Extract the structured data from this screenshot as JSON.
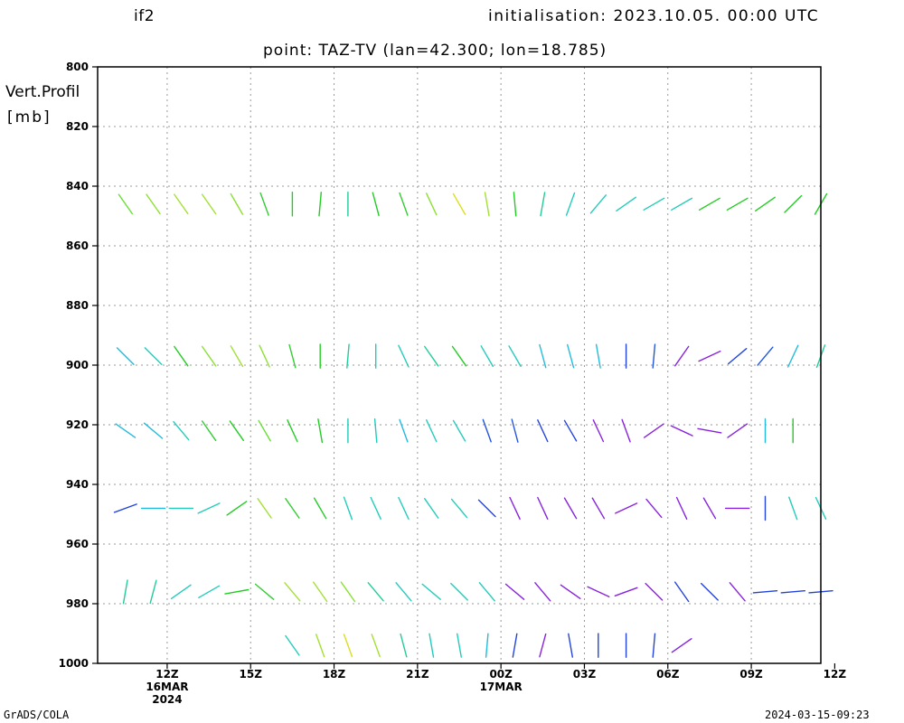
{
  "header": {
    "model": "if2",
    "initialisation": "initialisation: 2023.10.05. 00:00 UTC",
    "point": "point: TAZ-TV (lan=42.300; lon=18.785)"
  },
  "axis_title_lines": [
    "Vert.Profil",
    "[mb]"
  ],
  "footer": {
    "credit": "GrADS/COLA",
    "timestamp": "2024-03-15-09:23"
  },
  "chart_data": {
    "type": "vector-field",
    "title": "point: TAZ-TV (lan=42.300; lon=18.785)",
    "ylabel": "Vert.Profil [mb]",
    "y_inverted": true,
    "ylim": [
      800,
      1000
    ],
    "y_ticks": [
      800,
      820,
      840,
      860,
      880,
      900,
      920,
      940,
      960,
      980,
      1000
    ],
    "x_hours_range": [
      -2.5,
      23.5
    ],
    "x_ticks": [
      {
        "hour": 0,
        "label": "12Z",
        "sub1": "16MAR",
        "sub2": "2024"
      },
      {
        "hour": 3,
        "label": "15Z"
      },
      {
        "hour": 6,
        "label": "18Z"
      },
      {
        "hour": 9,
        "label": "21Z"
      },
      {
        "hour": 12,
        "label": "00Z",
        "sub1": "17MAR"
      },
      {
        "hour": 15,
        "label": "03Z"
      },
      {
        "hour": 18,
        "label": "06Z"
      },
      {
        "hour": 21,
        "label": "09Z"
      },
      {
        "hour": 24,
        "label": "12Z"
      }
    ],
    "grid": true,
    "levels": [
      {
        "pressure": 846,
        "vectors": [
          [
            -1.5,
            35,
            0.85,
            "#66e033"
          ],
          [
            -0.5,
            35,
            0.85,
            "#8ce033"
          ],
          [
            0.5,
            35,
            0.85,
            "#a3e033"
          ],
          [
            1.5,
            35,
            0.85,
            "#a3e033"
          ],
          [
            2.5,
            30,
            0.85,
            "#8ce033"
          ],
          [
            3.5,
            20,
            0.85,
            "#33cc33"
          ],
          [
            4.5,
            0,
            0.85,
            "#22cc22"
          ],
          [
            5.5,
            -5,
            0.85,
            "#22cc22"
          ],
          [
            6.5,
            0,
            0.85,
            "#22cc99"
          ],
          [
            7.5,
            15,
            0.85,
            "#22cc22"
          ],
          [
            8.5,
            20,
            0.85,
            "#33cc33"
          ],
          [
            9.5,
            25,
            0.85,
            "#8ce033"
          ],
          [
            10.5,
            30,
            0.85,
            "#dddd22"
          ],
          [
            11.5,
            10,
            0.85,
            "#a3e033"
          ],
          [
            12.5,
            5,
            0.85,
            "#22cc22"
          ],
          [
            13.5,
            -10,
            0.85,
            "#22cc99"
          ],
          [
            14.5,
            -20,
            0.85,
            "#22ccbb"
          ],
          [
            15.5,
            -40,
            0.85,
            "#22ccbb"
          ],
          [
            16.5,
            -55,
            0.85,
            "#22ccbb"
          ],
          [
            17.5,
            -60,
            0.85,
            "#22ccbb"
          ],
          [
            18.5,
            -60,
            0.85,
            "#22ccbb"
          ],
          [
            19.5,
            -60,
            0.85,
            "#22cc22"
          ],
          [
            20.5,
            -60,
            0.85,
            "#22cc22"
          ],
          [
            21.5,
            -55,
            0.85,
            "#22cc22"
          ],
          [
            22.5,
            -45,
            0.85,
            "#22cc22"
          ],
          [
            23.5,
            -30,
            0.85,
            "#22cc22"
          ]
        ]
      },
      {
        "pressure": 897,
        "vectors": [
          [
            -1.5,
            45,
            0.85,
            "#22bbdd"
          ],
          [
            -0.5,
            45,
            0.85,
            "#22ccbb"
          ],
          [
            0.5,
            35,
            0.85,
            "#22cc22"
          ],
          [
            1.5,
            35,
            0.85,
            "#8ce033"
          ],
          [
            2.5,
            30,
            0.85,
            "#a3e033"
          ],
          [
            3.5,
            25,
            0.85,
            "#8ce033"
          ],
          [
            4.5,
            15,
            0.85,
            "#33cc33"
          ],
          [
            5.5,
            0,
            0.85,
            "#22cc22"
          ],
          [
            6.5,
            -5,
            0.85,
            "#22cc99"
          ],
          [
            7.5,
            0,
            0.85,
            "#22ccbb"
          ],
          [
            8.5,
            25,
            0.85,
            "#22ccbb"
          ],
          [
            9.5,
            35,
            0.85,
            "#22cc99"
          ],
          [
            10.5,
            35,
            0.85,
            "#22cc22"
          ],
          [
            11.5,
            30,
            0.85,
            "#22ccbb"
          ],
          [
            12.5,
            30,
            0.85,
            "#22ccbb"
          ],
          [
            13.5,
            15,
            0.85,
            "#22bbdd"
          ],
          [
            14.5,
            15,
            0.85,
            "#22bbdd"
          ],
          [
            15.5,
            10,
            0.85,
            "#22bbdd"
          ],
          [
            16.5,
            0,
            0.85,
            "#2244dd"
          ],
          [
            17.5,
            -5,
            0.85,
            "#2255dd"
          ],
          [
            18.5,
            -35,
            0.85,
            "#8822dd"
          ],
          [
            19.5,
            -65,
            0.85,
            "#8822dd"
          ],
          [
            20.5,
            -50,
            0.85,
            "#2244dd"
          ],
          [
            21.5,
            -40,
            0.85,
            "#2255dd"
          ],
          [
            22.5,
            -25,
            0.85,
            "#22bbdd"
          ],
          [
            23.5,
            -20,
            0.85,
            "#22cc99"
          ]
        ]
      },
      {
        "pressure": 922,
        "vectors": [
          [
            -1.5,
            55,
            0.85,
            "#22bbdd"
          ],
          [
            -0.5,
            50,
            0.85,
            "#22bbdd"
          ],
          [
            0.5,
            40,
            0.85,
            "#22ccbb"
          ],
          [
            1.5,
            35,
            0.85,
            "#33cc33"
          ],
          [
            2.5,
            35,
            0.85,
            "#22cc22"
          ],
          [
            3.5,
            30,
            0.85,
            "#66e033"
          ],
          [
            4.5,
            25,
            0.85,
            "#22cc22"
          ],
          [
            5.5,
            10,
            0.85,
            "#22cc22"
          ],
          [
            6.5,
            0,
            0.85,
            "#22ccbb"
          ],
          [
            7.5,
            5,
            0.85,
            "#22ccbb"
          ],
          [
            8.5,
            20,
            0.85,
            "#22bbdd"
          ],
          [
            9.5,
            25,
            0.85,
            "#22ccbb"
          ],
          [
            10.5,
            30,
            0.85,
            "#22ccbb"
          ],
          [
            11.5,
            20,
            0.85,
            "#2255dd"
          ],
          [
            12.5,
            15,
            0.85,
            "#2255dd"
          ],
          [
            13.5,
            25,
            0.85,
            "#2244dd"
          ],
          [
            14.5,
            30,
            0.85,
            "#2244dd"
          ],
          [
            15.5,
            25,
            0.85,
            "#8822dd"
          ],
          [
            16.5,
            20,
            0.85,
            "#8822dd"
          ],
          [
            17.5,
            -55,
            0.85,
            "#8822dd"
          ],
          [
            18.5,
            65,
            0.85,
            "#8822dd"
          ],
          [
            19.5,
            80,
            0.85,
            "#8822dd"
          ],
          [
            20.5,
            -55,
            0.85,
            "#8822dd"
          ],
          [
            21.5,
            0,
            0.85,
            "#22bbdd"
          ],
          [
            22.5,
            0,
            0.85,
            "#22cc22"
          ]
        ]
      },
      {
        "pressure": 948,
        "vectors": [
          [
            -1.5,
            -70,
            0.85,
            "#2244dd"
          ],
          [
            -0.5,
            -90,
            0.85,
            "#22bbdd"
          ],
          [
            0.5,
            -90,
            0.85,
            "#22ccbb"
          ],
          [
            1.5,
            -65,
            0.85,
            "#22ccbb"
          ],
          [
            2.5,
            -55,
            0.85,
            "#22cc22"
          ],
          [
            3.5,
            35,
            0.85,
            "#a3e033"
          ],
          [
            4.5,
            35,
            0.85,
            "#33cc33"
          ],
          [
            5.5,
            30,
            0.85,
            "#22cc22"
          ],
          [
            6.5,
            20,
            0.85,
            "#22ccbb"
          ],
          [
            7.5,
            25,
            0.85,
            "#22ccbb"
          ],
          [
            8.5,
            25,
            0.85,
            "#22ccbb"
          ],
          [
            9.5,
            35,
            0.85,
            "#22ccbb"
          ],
          [
            10.5,
            40,
            0.85,
            "#22ccbb"
          ],
          [
            11.5,
            45,
            0.85,
            "#2244dd"
          ],
          [
            12.5,
            25,
            0.85,
            "#8822dd"
          ],
          [
            13.5,
            25,
            0.85,
            "#8822dd"
          ],
          [
            14.5,
            30,
            0.85,
            "#8822dd"
          ],
          [
            15.5,
            30,
            0.85,
            "#8822dd"
          ],
          [
            16.5,
            -65,
            0.85,
            "#8822dd"
          ],
          [
            17.5,
            40,
            0.85,
            "#8822dd"
          ],
          [
            18.5,
            25,
            0.85,
            "#8822dd"
          ],
          [
            19.5,
            30,
            0.85,
            "#8822dd"
          ],
          [
            20.5,
            -90,
            0.85,
            "#8822dd"
          ],
          [
            21.5,
            0,
            0.85,
            "#2244dd"
          ],
          [
            22.5,
            20,
            0.85,
            "#22ccbb"
          ],
          [
            23.5,
            25,
            0.85,
            "#22ccbb"
          ]
        ]
      },
      {
        "pressure": 976,
        "vectors": [
          [
            -1.5,
            -10,
            0.85,
            "#22cc99"
          ],
          [
            -0.5,
            -15,
            0.85,
            "#22cc99"
          ],
          [
            0.5,
            -55,
            0.85,
            "#22ccbb"
          ],
          [
            1.5,
            -60,
            0.85,
            "#22ccbb"
          ],
          [
            2.5,
            -80,
            0.85,
            "#22cc22"
          ],
          [
            3.5,
            50,
            0.85,
            "#33cc33"
          ],
          [
            4.5,
            40,
            0.85,
            "#a3e033"
          ],
          [
            5.5,
            35,
            0.85,
            "#a3e033"
          ],
          [
            6.5,
            35,
            0.85,
            "#8ce033"
          ],
          [
            7.5,
            40,
            0.85,
            "#22cc99"
          ],
          [
            8.5,
            40,
            0.85,
            "#22ccbb"
          ],
          [
            9.5,
            50,
            0.85,
            "#22ccbb"
          ],
          [
            10.5,
            45,
            0.85,
            "#22ccbb"
          ],
          [
            11.5,
            40,
            0.85,
            "#22ccbb"
          ],
          [
            12.5,
            50,
            0.85,
            "#8822dd"
          ],
          [
            13.5,
            40,
            0.85,
            "#8822dd"
          ],
          [
            14.5,
            55,
            0.85,
            "#8822dd"
          ],
          [
            15.5,
            65,
            0.85,
            "#8822dd"
          ],
          [
            16.5,
            -70,
            0.85,
            "#8822dd"
          ],
          [
            17.5,
            45,
            0.85,
            "#8822dd"
          ],
          [
            18.5,
            35,
            0.85,
            "#2244dd"
          ],
          [
            19.5,
            45,
            0.85,
            "#2244dd"
          ],
          [
            20.5,
            40,
            0.85,
            "#8822dd"
          ],
          [
            21.5,
            -85,
            0.85,
            "#2244dd"
          ],
          [
            22.5,
            -85,
            0.85,
            "#2244dd"
          ],
          [
            23.5,
            -85,
            0.85,
            "#2244dd"
          ]
        ]
      },
      {
        "pressure": 994,
        "vectors": [
          [
            4.5,
            35,
            0.85,
            "#22ccbb"
          ],
          [
            5.5,
            20,
            0.85,
            "#a3e033"
          ],
          [
            6.5,
            20,
            0.85,
            "#dddd22"
          ],
          [
            7.5,
            20,
            0.85,
            "#a3e033"
          ],
          [
            8.5,
            15,
            0.85,
            "#22cc99"
          ],
          [
            9.5,
            10,
            0.85,
            "#22ccbb"
          ],
          [
            10.5,
            10,
            0.85,
            "#22ccbb"
          ],
          [
            11.5,
            -5,
            0.85,
            "#22bbdd"
          ],
          [
            12.5,
            -10,
            0.85,
            "#2244dd"
          ],
          [
            13.5,
            -15,
            0.85,
            "#8822dd"
          ],
          [
            14.5,
            10,
            0.85,
            "#2244dd"
          ],
          [
            15.5,
            0,
            0.85,
            "#2244dd"
          ],
          [
            16.5,
            0,
            0.85,
            "#2244dd"
          ],
          [
            17.5,
            -5,
            0.85,
            "#2244dd"
          ],
          [
            18.5,
            -55,
            0.85,
            "#8822dd"
          ]
        ]
      }
    ]
  }
}
